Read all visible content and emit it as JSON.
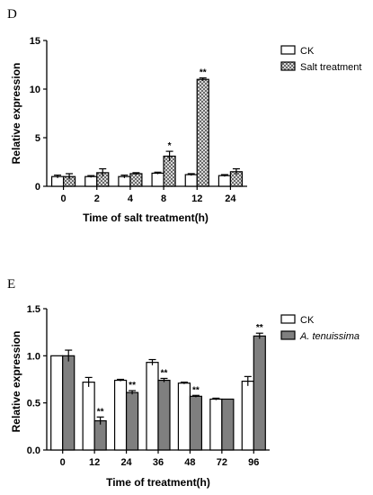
{
  "chart_data": [
    {
      "panel": "D",
      "type": "bar",
      "categories": [
        "0",
        "2",
        "4",
        "8",
        "12",
        "24"
      ],
      "series": [
        {
          "name": "CK",
          "values": [
            1.0,
            1.0,
            1.0,
            1.35,
            1.2,
            1.1
          ],
          "errors": [
            0.15,
            0.1,
            0.15,
            0.1,
            0.1,
            0.1
          ],
          "marks": [
            "",
            "",
            "",
            "",
            "",
            ""
          ]
        },
        {
          "name": "Salt treatment",
          "values": [
            1.0,
            1.4,
            1.3,
            3.1,
            11.0,
            1.5
          ],
          "errors": [
            0.3,
            0.4,
            0.1,
            0.5,
            0.15,
            0.3
          ],
          "marks": [
            "",
            "",
            "",
            "*",
            "**",
            ""
          ]
        }
      ],
      "xlabel": "Time of salt treatment(h)",
      "ylabel": "Relative expression",
      "ylim": [
        0,
        15
      ],
      "yticks": [
        "0",
        "5",
        "10",
        "15"
      ],
      "legend": "top-right",
      "grid": false
    },
    {
      "panel": "E",
      "type": "bar",
      "categories": [
        "0",
        "12",
        "24",
        "36",
        "48",
        "72",
        "96"
      ],
      "series": [
        {
          "name": "CK",
          "values": [
            1.0,
            0.72,
            0.74,
            0.93,
            0.71,
            0.54,
            0.73
          ],
          "errors": [
            0.0,
            0.05,
            0.01,
            0.03,
            0.01,
            0.01,
            0.05
          ],
          "marks": [
            "",
            "",
            "",
            "",
            "",
            "",
            ""
          ]
        },
        {
          "name": "A. tenuissima",
          "values": [
            1.0,
            0.31,
            0.61,
            0.74,
            0.57,
            0.54,
            1.21
          ],
          "errors": [
            0.06,
            0.04,
            0.02,
            0.02,
            0.01,
            0.0,
            0.03
          ],
          "marks": [
            "",
            "**",
            "**",
            "**",
            "**",
            "",
            "**"
          ]
        }
      ],
      "xlabel": "Time of treatment(h)",
      "ylabel": "Relative expression",
      "ylim": [
        0,
        1.5
      ],
      "yticks": [
        "0.0",
        "0.5",
        "1.0",
        "1.5"
      ],
      "legend": "top-right",
      "grid": false
    }
  ],
  "colors": {
    "ck_fill": "#ffffff",
    "salt_fill": "#9a9a9a",
    "tenuissima_fill": "#7f7f7f",
    "axis": "#000000"
  }
}
